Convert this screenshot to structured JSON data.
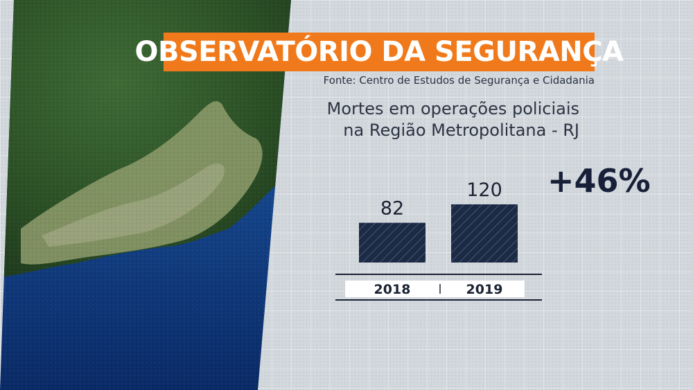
{
  "title": "OBSERVATÓRIO DA SEGURANÇA",
  "source": "Fonte: Centro de Estudos de Segurança e Cidadania",
  "subtitle_line1": "Mortes em operações policiais",
  "subtitle_line2": "na Região Metropolitana - RJ",
  "change_label": "+46%",
  "colors": {
    "accent": "#f07a1b",
    "bar": "#1c2a44",
    "text_dark": "#172038",
    "background": "#d3d8dd"
  },
  "chart_data": {
    "type": "bar",
    "categories": [
      "2018",
      "2019"
    ],
    "values": [
      82,
      120
    ],
    "data_labels": [
      "82",
      "120"
    ],
    "bar_pattern": "diagonal-hatch",
    "grid": false
  }
}
